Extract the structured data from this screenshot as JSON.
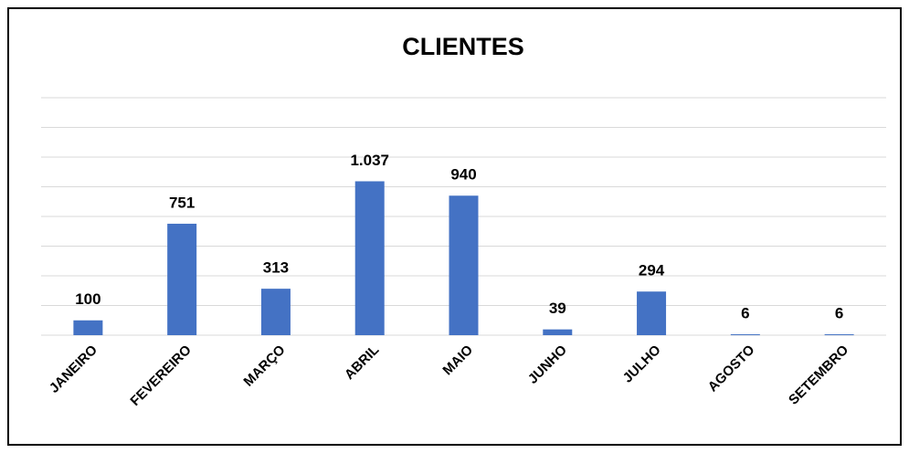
{
  "chart_data": {
    "type": "bar",
    "title": "CLIENTES",
    "categories": [
      "JANEIRO",
      "FEVEREIRO",
      "MARÇO",
      "ABRIL",
      "MAIO",
      "JUNHO",
      "JULHO",
      "AGOSTO",
      "SETEMBRO"
    ],
    "values": [
      100,
      751,
      313,
      1037,
      940,
      39,
      294,
      6,
      6
    ],
    "value_labels": [
      "100",
      "751",
      "313",
      "1.037",
      "940",
      "39",
      "294",
      "6",
      "6"
    ],
    "color": "#4472c4",
    "ylim": [
      0,
      1600
    ],
    "yticks": [
      0,
      200,
      400,
      600,
      800,
      1000,
      1200,
      1400,
      1600
    ],
    "grid": true
  }
}
